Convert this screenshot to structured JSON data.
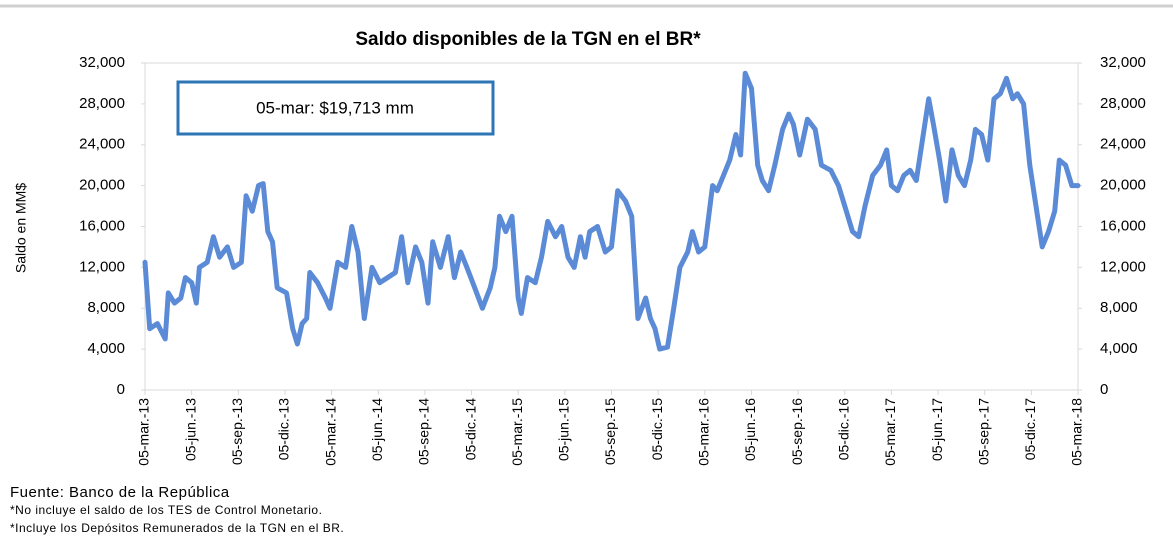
{
  "chart_data": {
    "type": "line",
    "title": "Saldo disponibles de la TGN en el BR*",
    "y_label": "Saldo en MM$",
    "annotation": "05-mar: $19,713 mm",
    "source": "Fuente: Banco de la República",
    "notes": [
      "*No incluye el saldo de los TES de Control Monetario.",
      "*Incluye los Depósitos Remunerados de la TGN en el BR."
    ],
    "color": "#5b8bd6",
    "xlim": [
      0,
      60
    ],
    "xticks": [
      {
        "value": 0,
        "label": "05-mar.-13"
      },
      {
        "value": 3,
        "label": "05-jun.-13"
      },
      {
        "value": 6,
        "label": "05-sep.-13"
      },
      {
        "value": 9,
        "label": "05-dic.-13"
      },
      {
        "value": 12,
        "label": "05-mar.-14"
      },
      {
        "value": 15,
        "label": "05-jun.-14"
      },
      {
        "value": 18,
        "label": "05-sep.-14"
      },
      {
        "value": 21,
        "label": "05-dic.-14"
      },
      {
        "value": 24,
        "label": "05-mar.-15"
      },
      {
        "value": 27,
        "label": "05-jun.-15"
      },
      {
        "value": 30,
        "label": "05-sep.-15"
      },
      {
        "value": 33,
        "label": "05-dic.-15"
      },
      {
        "value": 36,
        "label": "05-mar.-16"
      },
      {
        "value": 39,
        "label": "05-jun.-16"
      },
      {
        "value": 42,
        "label": "05-sep.-16"
      },
      {
        "value": 45,
        "label": "05-dic.-16"
      },
      {
        "value": 48,
        "label": "05-mar.-17"
      },
      {
        "value": 51,
        "label": "05-jun.-17"
      },
      {
        "value": 54,
        "label": "05-sep.-17"
      },
      {
        "value": 57,
        "label": "05-dic.-17"
      },
      {
        "value": 60,
        "label": "05-mar.-18"
      }
    ],
    "ylim": [
      0,
      32000
    ],
    "yticks": [
      0,
      {
        "value": 4000,
        "label": "4,000"
      },
      {
        "value": 8000,
        "label": "8,000"
      },
      {
        "value": 12000,
        "label": "12,000"
      },
      {
        "value": 16000,
        "label": "16,000"
      },
      {
        "value": 20000,
        "label": "20,000"
      },
      {
        "value": 24000,
        "label": "24,000"
      },
      {
        "value": 28000,
        "label": "28,000"
      },
      {
        "value": 32000,
        "label": "32,000"
      }
    ],
    "y2lim": [
      0,
      32000
    ],
    "y2ticks": [
      0,
      {
        "value": 4000,
        "label": "4,000"
      },
      {
        "value": 8000,
        "label": "8,000"
      },
      {
        "value": 12000,
        "label": "12,000"
      },
      {
        "value": 16000,
        "label": "16,000"
      },
      {
        "value": 20000,
        "label": "20,000"
      },
      {
        "value": 24000,
        "label": "24,000"
      },
      {
        "value": 28000,
        "label": "28,000"
      },
      {
        "value": 32000,
        "label": "32,000"
      }
    ],
    "x": [
      0,
      0.3,
      0.8,
      1.3,
      1.5,
      1.9,
      2.3,
      2.6,
      3.0,
      3.3,
      3.5,
      4.0,
      4.4,
      4.8,
      5.3,
      5.7,
      6.2,
      6.5,
      6.9,
      7.3,
      7.6,
      7.9,
      8.2,
      8.5,
      9.1,
      9.5,
      9.8,
      10.1,
      10.4,
      10.6,
      11.1,
      11.6,
      11.9,
      12.4,
      12.9,
      13.3,
      13.7,
      14.1,
      14.6,
      15.1,
      15.6,
      16.1,
      16.5,
      16.9,
      17.4,
      17.8,
      18.2,
      18.5,
      19.0,
      19.5,
      19.9,
      20.3,
      20.7,
      21.2,
      21.7,
      22.2,
      22.5,
      22.8,
      23.2,
      23.6,
      24.0,
      24.2,
      24.6,
      25.1,
      25.5,
      25.9,
      26.4,
      26.8,
      27.2,
      27.6,
      28.0,
      28.3,
      28.6,
      29.1,
      29.6,
      30.0,
      30.4,
      30.9,
      31.3,
      31.7,
      32.2,
      32.5,
      32.8,
      33.1,
      33.6,
      34.0,
      34.4,
      34.9,
      35.2,
      35.6,
      36.0,
      36.5,
      36.8,
      37.2,
      37.6,
      38.0,
      38.3,
      38.6,
      39.0,
      39.4,
      39.7,
      40.1,
      40.5,
      41.0,
      41.4,
      41.7,
      42.1,
      42.6,
      43.1,
      43.5,
      44.1,
      44.6,
      45.0,
      45.5,
      45.9,
      46.3,
      46.8,
      47.3,
      47.7,
      48.0,
      48.4,
      48.8,
      49.2,
      49.6,
      50.0,
      50.4,
      50.7,
      51.1,
      51.5,
      51.9,
      52.3,
      52.7,
      53.1,
      53.4,
      53.8,
      54.2,
      54.6,
      55.0,
      55.4,
      55.8,
      56.1,
      56.5,
      56.9,
      57.3,
      57.7,
      58.1,
      58.5,
      58.8,
      59.2,
      59.6,
      60.0
    ],
    "values": [
      12500,
      6000,
      6500,
      5000,
      9500,
      8500,
      9000,
      11000,
      10500,
      8500,
      12000,
      12500,
      15000,
      13000,
      14000,
      12000,
      12500,
      19000,
      17500,
      20000,
      20200,
      15500,
      14500,
      10000,
      9500,
      6000,
      4500,
      6500,
      7000,
      11500,
      10500,
      9000,
      8000,
      12500,
      12000,
      16000,
      13500,
      7000,
      12000,
      10500,
      11000,
      11500,
      15000,
      10500,
      14000,
      12500,
      8500,
      14500,
      12000,
      15000,
      11000,
      13500,
      12000,
      10000,
      8000,
      10000,
      12000,
      17000,
      15500,
      17000,
      9000,
      7500,
      11000,
      10500,
      13000,
      16500,
      15000,
      16000,
      13000,
      12000,
      15000,
      13000,
      15500,
      16000,
      13500,
      14000,
      19500,
      18500,
      17000,
      7000,
      9000,
      7000,
      6000,
      4000,
      4200,
      8000,
      12000,
      13500,
      15500,
      13500,
      14000,
      20000,
      19500,
      21000,
      22500,
      25000,
      23000,
      31000,
      29500,
      22000,
      20500,
      19500,
      22000,
      25500,
      27000,
      26000,
      23000,
      26500,
      25500,
      22000,
      21500,
      20000,
      18000,
      15500,
      15000,
      18000,
      21000,
      22000,
      23500,
      20000,
      19500,
      21000,
      21500,
      20500,
      24500,
      28500,
      26000,
      22500,
      18500,
      23500,
      21000,
      20000,
      22500,
      25500,
      25000,
      22500,
      28500,
      29000,
      30500,
      28500,
      29000,
      28000,
      22000,
      18000,
      14000,
      15500,
      17500,
      22500,
      22000,
      20000,
      20000
    ]
  }
}
